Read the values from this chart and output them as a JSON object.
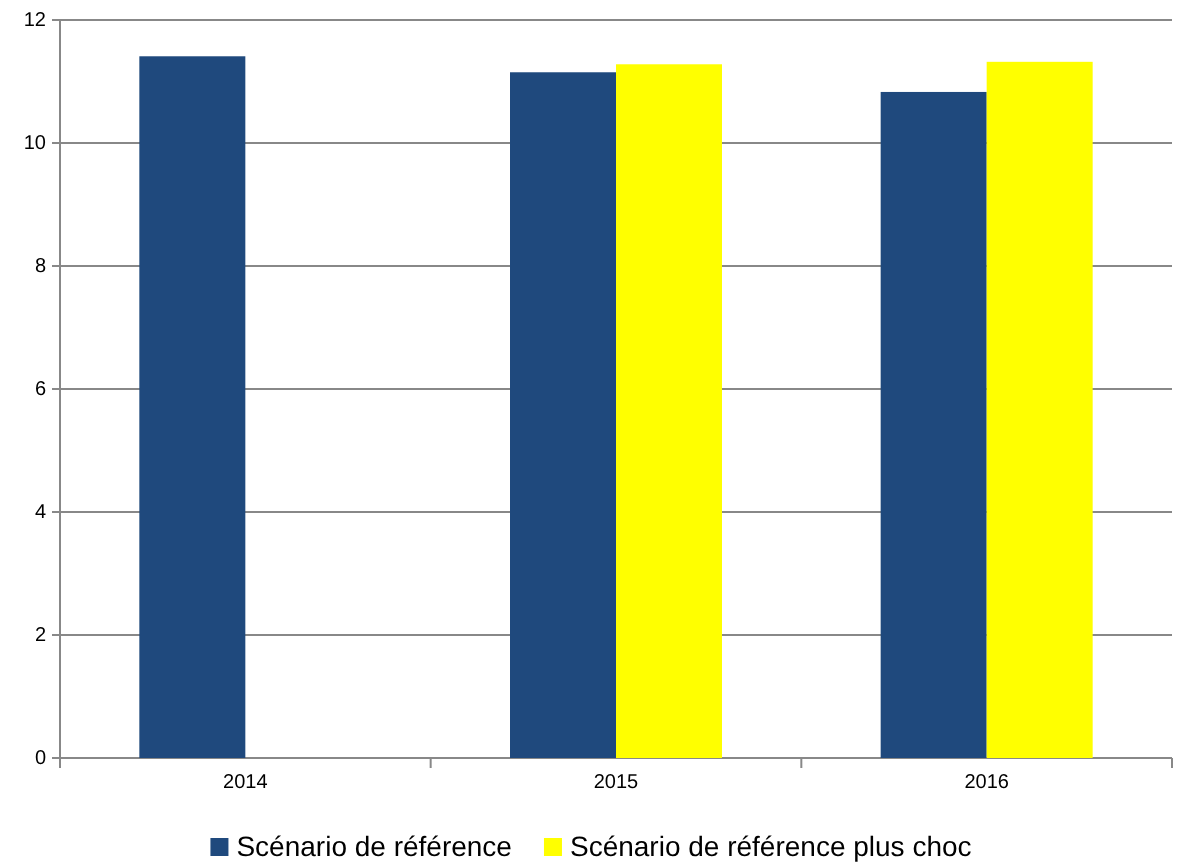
{
  "chart_data": {
    "type": "bar",
    "categories": [
      "2014",
      "2015",
      "2016"
    ],
    "series": [
      {
        "name": "Scénario de référence",
        "color": "#1f497d",
        "values": [
          11.41,
          11.15,
          10.83
        ]
      },
      {
        "name": "Scénario de référence plus choc",
        "color": "#ffff00",
        "values": [
          null,
          11.28,
          11.32
        ]
      }
    ],
    "ylim": [
      0,
      12
    ],
    "yticks": [
      0,
      2,
      4,
      6,
      8,
      10,
      12
    ],
    "grid": "y",
    "legend": "bottom"
  }
}
